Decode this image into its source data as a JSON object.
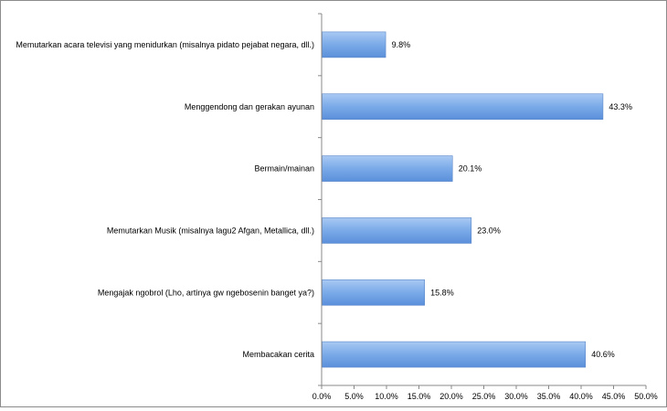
{
  "chart_data": {
    "type": "bar",
    "orientation": "horizontal",
    "title": "",
    "xlabel": "",
    "ylabel": "",
    "xlim": [
      0,
      50
    ],
    "x_ticks": [
      "0.0%",
      "5.0%",
      "10.0%",
      "15.0%",
      "20.0%",
      "25.0%",
      "30.0%",
      "35.0%",
      "40.0%",
      "45.0%",
      "50.0%"
    ],
    "grid": false,
    "legend": "none",
    "categories": [
      "Memutarkan acara televisi yang menidurkan (misalnya pidato pejabat negara, dll.)",
      "Menggendong dan gerakan ayunan",
      "Bermain/mainan",
      "Memutarkan Musik (misalnya lagu2 Afgan, Metallica, dll.)",
      "Mengajak ngobrol (Lho, artinya gw ngebosenin banget ya?)",
      "Membacakan cerita"
    ],
    "values": [
      9.8,
      43.3,
      20.1,
      23.0,
      15.8,
      40.6
    ],
    "data_labels": [
      "9.8%",
      "43.3%",
      "20.1%",
      "23.0%",
      "15.8%",
      "40.6%"
    ],
    "bar_color": "#7aaae8"
  }
}
